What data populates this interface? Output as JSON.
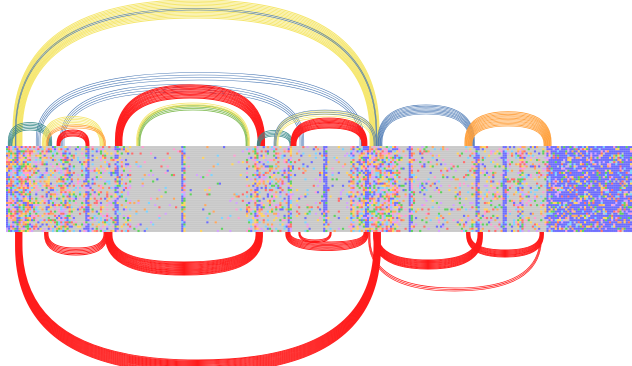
{
  "diagram": {
    "type": "arc-diagram-over-alignment",
    "background": "#ffffff",
    "alignment": {
      "gap_color": "#c8c8c8",
      "grid_color": "#ffffff",
      "residue_colors": [
        "#ff6b6b",
        "#6b6bff",
        "#ffd25a",
        "#ff9bd2",
        "#5ad25a",
        "#ffa55a",
        "#7ad2ff",
        "#d2a0ff"
      ],
      "conserved_color": "#6b6bff"
    },
    "arc_colors": {
      "red": "#ff1a1a",
      "yellow": "#f5e66a",
      "steelblue": "#4a78b4",
      "green": "#7ab84a",
      "orange": "#ffa03c",
      "teal": "#3a8a8a"
    }
  }
}
